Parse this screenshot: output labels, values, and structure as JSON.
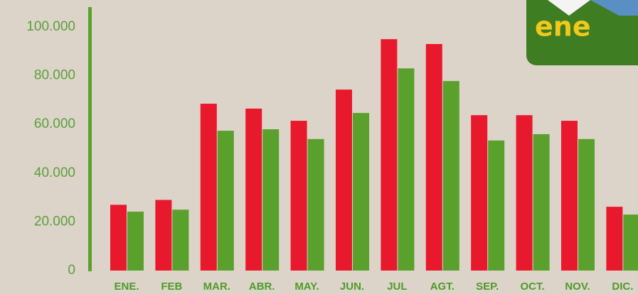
{
  "chart_data": {
    "type": "bar",
    "logo": "ene",
    "categories": [
      "ENE.",
      "FEB",
      "MAR.",
      "ABR.",
      "MAY.",
      "JUN.",
      "JUL",
      "AGT.",
      "SEP.",
      "OCT.",
      "NOV.",
      "DIC."
    ],
    "series": [
      {
        "color": "#e8192c",
        "values": [
          27000,
          29000,
          68500,
          66500,
          61500,
          74300,
          95000,
          93000,
          63800,
          63800,
          61500,
          26200
        ]
      },
      {
        "color": "#5aa02c",
        "values": [
          24200,
          25000,
          57400,
          58000,
          54000,
          64700,
          83000,
          77800,
          53400,
          56000,
          54000,
          23000
        ]
      }
    ],
    "ylim": [
      0,
      100000
    ],
    "yticks": [
      0,
      {
        "value": 20000,
        "label": "20.000"
      },
      {
        "value": 40000,
        "label": "40.000"
      },
      {
        "value": 60000,
        "label": "60.000"
      },
      {
        "value": 80000,
        "label": "80.000"
      },
      {
        "value": 100000,
        "label": "100.000"
      }
    ],
    "grid": false
  }
}
